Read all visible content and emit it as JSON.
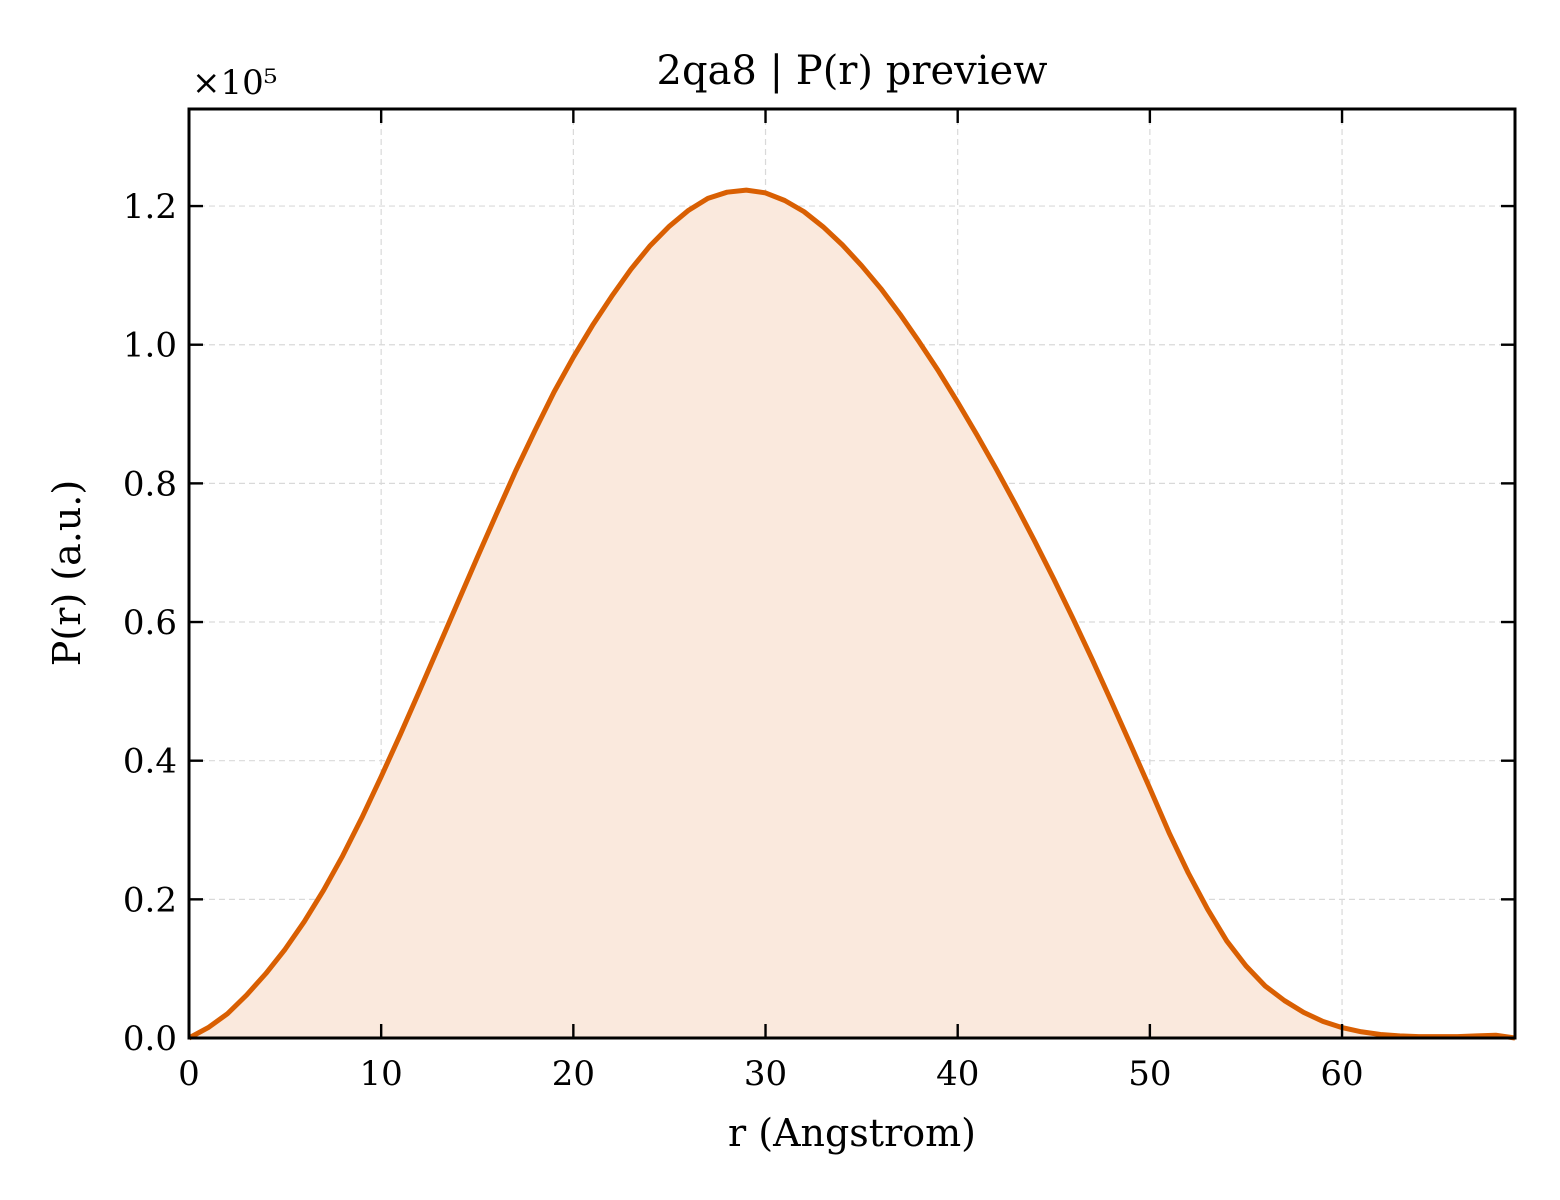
{
  "chart_data": {
    "type": "area",
    "title": "2qa8 | P(r) preview",
    "xlabel": "r (Angstrom)",
    "ylabel": "P(r) (a.u.)",
    "y_scale_note": "×10⁵",
    "xlim": [
      0,
      69
    ],
    "ylim": [
      0,
      1.34
    ],
    "grid": true,
    "x_ticks": [
      0,
      10,
      20,
      30,
      40,
      50,
      60
    ],
    "y_ticks": [
      0.0,
      0.2,
      0.4,
      0.6,
      0.8,
      1.0,
      1.2
    ],
    "x_tick_labels": [
      "0",
      "10",
      "20",
      "30",
      "40",
      "50",
      "60"
    ],
    "y_tick_labels": [
      "0.0",
      "0.2",
      "0.4",
      "0.6",
      "0.8",
      "1.0",
      "1.2"
    ],
    "colors": {
      "line": "#d95f02",
      "fill": "#fae9dd"
    },
    "series": [
      {
        "x": [
          0,
          1,
          2,
          3,
          4,
          5,
          6,
          7,
          8,
          9,
          10,
          11,
          12,
          13,
          14,
          15,
          16,
          17,
          18,
          19,
          20,
          21,
          22,
          23,
          24,
          25,
          26,
          27,
          28,
          29,
          30,
          31,
          32,
          33,
          34,
          35,
          36,
          37,
          38,
          39,
          40,
          41,
          42,
          43,
          44,
          45,
          46,
          47,
          48,
          49,
          50,
          51,
          52,
          53,
          54,
          55,
          56,
          57,
          58,
          59,
          60,
          61,
          62,
          63,
          64,
          65,
          66,
          67,
          68,
          69
        ],
        "values": [
          0.0,
          0.015,
          0.035,
          0.062,
          0.093,
          0.128,
          0.168,
          0.213,
          0.263,
          0.318,
          0.377,
          0.438,
          0.501,
          0.565,
          0.629,
          0.693,
          0.756,
          0.818,
          0.876,
          0.932,
          0.982,
          1.028,
          1.07,
          1.109,
          1.143,
          1.171,
          1.194,
          1.211,
          1.22,
          1.223,
          1.219,
          1.208,
          1.192,
          1.17,
          1.144,
          1.114,
          1.081,
          1.044,
          1.004,
          0.962,
          0.917,
          0.87,
          0.821,
          0.77,
          0.717,
          0.662,
          0.605,
          0.546,
          0.485,
          0.423,
          0.36,
          0.296,
          0.238,
          0.186,
          0.14,
          0.104,
          0.075,
          0.054,
          0.037,
          0.024,
          0.015,
          0.009,
          0.005,
          0.003,
          0.002,
          0.002,
          0.002,
          0.003,
          0.004,
          0.0
        ]
      }
    ]
  }
}
